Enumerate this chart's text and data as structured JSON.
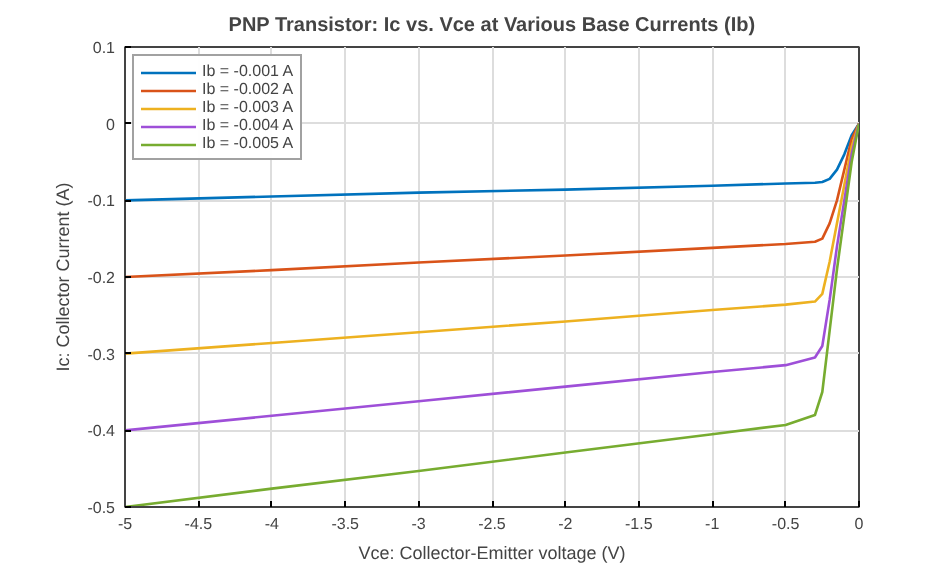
{
  "chart_data": {
    "type": "line",
    "title": "PNP Transistor: Ic vs. Vce at Various Base Currents (Ib)",
    "xlabel": "Vce: Collector-Emitter voltage (V)",
    "ylabel": "Ic: Collector Current (A)",
    "x": [
      -5,
      -4,
      -3,
      -2,
      -1,
      -0.5,
      -0.3,
      -0.25,
      -0.2,
      -0.15,
      -0.1,
      -0.05,
      0
    ],
    "series": [
      {
        "name": "Ib = -0.001 A",
        "color": "#0072bd",
        "values": [
          -0.1,
          -0.095,
          -0.09,
          -0.086,
          -0.081,
          -0.078,
          -0.077,
          -0.076,
          -0.072,
          -0.06,
          -0.04,
          -0.015,
          0
        ]
      },
      {
        "name": "Ib = -0.002 A",
        "color": "#d95319",
        "values": [
          -0.2,
          -0.191,
          -0.181,
          -0.172,
          -0.162,
          -0.157,
          -0.154,
          -0.15,
          -0.13,
          -0.1,
          -0.06,
          -0.02,
          0
        ]
      },
      {
        "name": "Ib = -0.003 A",
        "color": "#edb120",
        "values": [
          -0.3,
          -0.286,
          -0.272,
          -0.258,
          -0.243,
          -0.236,
          -0.232,
          -0.222,
          -0.18,
          -0.13,
          -0.08,
          -0.03,
          0
        ]
      },
      {
        "name": "Ib = -0.004 A",
        "color": "#9e4fd8",
        "values": [
          -0.4,
          -0.381,
          -0.362,
          -0.343,
          -0.324,
          -0.315,
          -0.305,
          -0.29,
          -0.23,
          -0.16,
          -0.1,
          -0.04,
          0
        ]
      },
      {
        "name": "Ib = -0.005 A",
        "color": "#77ac30",
        "values": [
          -0.5,
          -0.476,
          -0.453,
          -0.429,
          -0.405,
          -0.393,
          -0.38,
          -0.35,
          -0.27,
          -0.19,
          -0.12,
          -0.05,
          0
        ]
      }
    ],
    "xlim": [
      -5,
      0
    ],
    "ylim": [
      -0.5,
      0.1
    ],
    "xticks": [
      -5,
      -4.5,
      -4,
      -3.5,
      -3,
      -2.5,
      -2,
      -1.5,
      -1,
      -0.5,
      0
    ],
    "yticks": [
      -0.5,
      -0.4,
      -0.3,
      -0.2,
      -0.1,
      0,
      0.1
    ],
    "grid": true,
    "legend": "top left",
    "line_style": "solid",
    "marker": "none"
  }
}
